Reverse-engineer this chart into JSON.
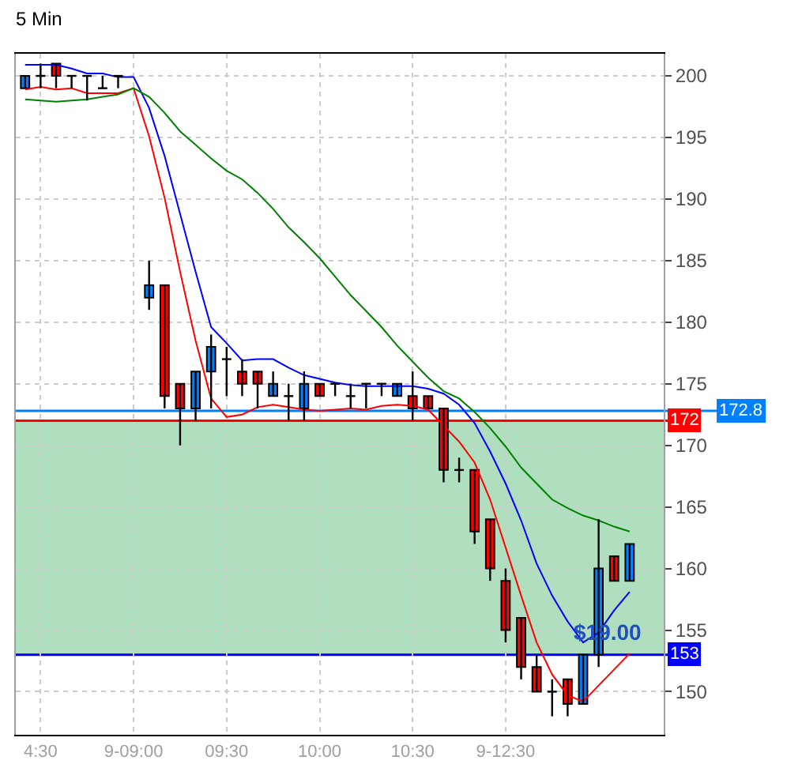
{
  "chart_data": {
    "type": "candlestick",
    "title": "5 Min",
    "categories": [
      null,
      "4:30",
      null,
      null,
      null,
      null,
      null,
      "9-09:00",
      null,
      null,
      null,
      null,
      null,
      "09:30",
      null,
      null,
      null,
      null,
      null,
      "10:00",
      null,
      null,
      null,
      null,
      null,
      "10:30",
      null,
      null,
      null,
      null,
      null,
      "9-12:30",
      null,
      null,
      null,
      null,
      null,
      null,
      null,
      null
    ],
    "series": [
      {
        "type": "candlestick",
        "colors": [
          "#0080ff",
          "#000000",
          "#ff0000",
          "#000000",
          "#000000",
          "#000000",
          "#000000",
          null,
          "#0080ff",
          "#ff0000",
          "#ff0000",
          "#0080ff",
          "#0080ff",
          "#000000",
          "#ff0000",
          "#ff0000",
          "#0080ff",
          "#000000",
          "#0080ff",
          "#ff0000",
          "#000000",
          "#000000",
          "#000000",
          "#000000",
          "#0080ff",
          "#ff0000",
          "#ff0000",
          "#ff0000",
          "#000000",
          "#ff0000",
          "#ff0000",
          "#ff0000",
          "#ff0000",
          "#ff0000",
          "#000000",
          "#ff0000",
          "#0080ff",
          "#0080ff",
          "#ff0000",
          "#0080ff"
        ],
        "ohlc": [
          [
            199,
            200,
            199,
            200
          ],
          [
            200,
            201,
            199,
            200
          ],
          [
            201,
            201,
            199,
            200
          ],
          [
            200,
            200,
            199,
            200
          ],
          [
            200,
            200,
            198,
            200
          ],
          [
            199,
            200,
            199,
            199
          ],
          [
            200,
            200,
            199,
            200
          ],
          null,
          [
            182,
            185,
            181,
            183
          ],
          [
            183,
            183,
            173,
            174
          ],
          [
            175,
            175,
            170,
            173
          ],
          [
            173,
            176,
            172,
            176
          ],
          [
            176,
            179,
            173,
            178
          ],
          [
            177,
            178,
            174,
            177
          ],
          [
            176,
            177,
            174,
            175
          ],
          [
            176,
            176,
            173,
            175
          ],
          [
            174,
            176,
            174,
            175
          ],
          [
            174,
            175,
            172,
            174
          ],
          [
            173,
            176,
            172,
            175
          ],
          [
            175,
            175,
            174,
            174
          ],
          [
            175,
            175,
            174,
            175
          ],
          [
            174,
            175,
            173,
            174
          ],
          [
            175,
            175,
            173,
            175
          ],
          [
            175,
            175,
            174,
            175
          ],
          [
            174,
            175,
            174,
            175
          ],
          [
            174,
            176,
            172,
            173
          ],
          [
            174,
            174,
            173,
            173
          ],
          [
            173,
            173,
            167,
            168
          ],
          [
            168,
            169,
            167,
            168
          ],
          [
            168,
            168,
            162,
            163
          ],
          [
            164,
            164,
            159,
            160
          ],
          [
            159,
            160,
            154,
            155
          ],
          [
            156,
            156,
            151,
            152
          ],
          [
            152,
            153,
            150,
            150
          ],
          [
            150,
            151,
            148,
            150
          ],
          [
            151,
            151,
            148,
            149
          ],
          [
            149,
            153,
            149,
            153
          ],
          [
            153,
            164,
            152,
            160
          ],
          [
            161,
            161,
            159,
            159
          ],
          [
            159,
            162,
            159,
            162
          ]
        ]
      },
      {
        "type": "line",
        "color": "#0000ff",
        "values": [
          200.9,
          200.9,
          200.9,
          200.6,
          200.2,
          200.2,
          199.9,
          199.9,
          197.4,
          193.5,
          188.8,
          184.1,
          179.6,
          178.3,
          176.9,
          177.0,
          177.0,
          176.3,
          175.7,
          175.4,
          175.1,
          174.9,
          174.8,
          174.8,
          174.8,
          174.8,
          174.6,
          174.2,
          173.3,
          171.8,
          169.5,
          166.9,
          163.9,
          160.4,
          157.8,
          155.7,
          154.0,
          154.8,
          156.6,
          158.1
        ]
      },
      {
        "type": "line",
        "color": "#ff0000",
        "values": [
          198.9,
          199.1,
          198.9,
          199.0,
          198.6,
          198.6,
          198.6,
          199.0,
          195.1,
          190.1,
          184.1,
          178.5,
          173.8,
          172.3,
          172.5,
          173.1,
          173.3,
          173.1,
          172.9,
          172.8,
          172.9,
          173.0,
          172.9,
          173.2,
          173.3,
          173.2,
          172.9,
          171.6,
          170.3,
          168.6,
          165.6,
          161.7,
          157.8,
          154.0,
          151.4,
          149.7,
          149.2,
          150.5,
          151.8,
          153.1
        ]
      },
      {
        "type": "line",
        "color": "#008000",
        "values": [
          198.1,
          198.0,
          197.9,
          198.0,
          198.1,
          198.3,
          198.5,
          199.0,
          198.3,
          197.0,
          195.5,
          194.4,
          193.3,
          192.3,
          191.6,
          190.5,
          189.2,
          187.7,
          186.5,
          185.2,
          183.7,
          182.2,
          180.9,
          179.6,
          178.1,
          176.8,
          175.5,
          174.4,
          173.8,
          172.7,
          171.4,
          169.9,
          168.2,
          166.9,
          165.6,
          164.9,
          164.3,
          163.9,
          163.4,
          163.0
        ]
      }
    ],
    "ylim": [
      146.5,
      201.8
    ],
    "yticks": [
      150,
      155,
      160,
      165,
      170,
      175,
      180,
      185,
      190,
      195,
      200
    ],
    "ref_lines": [
      {
        "axis": "y",
        "value": 172.8,
        "label": "172.8",
        "color": "#0080ff"
      },
      {
        "axis": "y",
        "value": 172,
        "label": "172",
        "color": "#ff0000"
      },
      {
        "axis": "y",
        "value": 153,
        "label": "153",
        "color": "#0000ff"
      }
    ],
    "bands": [
      {
        "axis": "y",
        "from": 153,
        "to": 172,
        "label": "$19.00",
        "color": "#4db870"
      }
    ],
    "grid": true,
    "marker": "none"
  }
}
